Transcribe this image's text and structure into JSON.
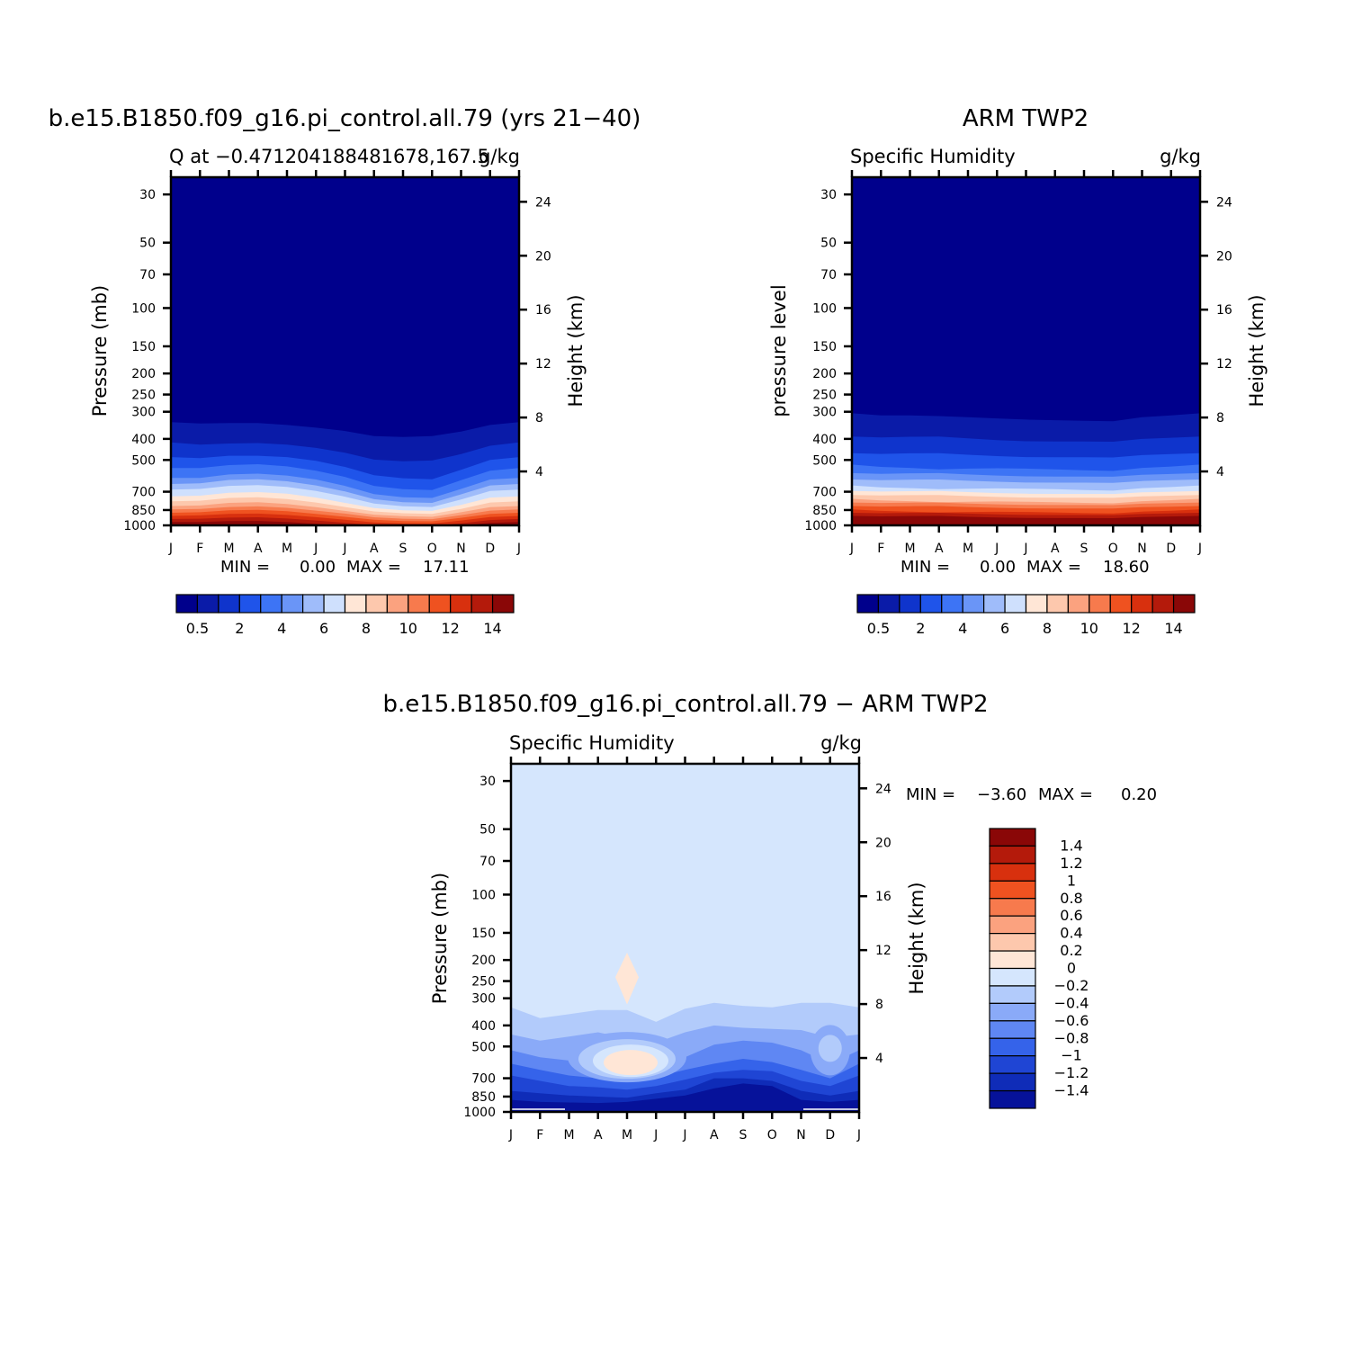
{
  "chart_data": [
    {
      "type": "heatmap",
      "title": "b.e15.B1850.f09_g16.pi_control.all.79 (yrs 21−40)",
      "left_label": "Q at −0.471204188481678,167.5",
      "right_label": "g/kg",
      "ylabel": "Pressure (mb)",
      "ylabel_right": "Height (km)",
      "x_ticks": [
        "J",
        "F",
        "M",
        "A",
        "M",
        "J",
        "J",
        "A",
        "S",
        "O",
        "N",
        "D",
        "J"
      ],
      "y_ticks": [
        30,
        50,
        70,
        100,
        150,
        200,
        250,
        300,
        400,
        500,
        700,
        850,
        1000
      ],
      "y_right_ticks": [
        24,
        20,
        16,
        12,
        8,
        4
      ],
      "ylim": [
        1000,
        25
      ],
      "stats": {
        "min_label": "MIN =",
        "min": "0.00",
        "max_label": "MAX =",
        "max": "17.11"
      },
      "colorbar": {
        "orientation": "horizontal",
        "labels": [
          "0.5",
          "2",
          "4",
          "6",
          "8",
          "10",
          "12",
          "14"
        ]
      },
      "month_profile_q_at_500mb": [
        2.2,
        2.3,
        2.5,
        2.7,
        2.6,
        2.3,
        2.0,
        1.6,
        1.3,
        1.2,
        1.8,
        2.3,
        2.2
      ]
    },
    {
      "type": "heatmap",
      "title": "ARM TWP2",
      "left_label": "Specific Humidity",
      "right_label": "g/kg",
      "ylabel": "pressure level",
      "ylabel_right": "Height (km)",
      "x_ticks": [
        "J",
        "F",
        "M",
        "A",
        "M",
        "J",
        "J",
        "A",
        "S",
        "O",
        "N",
        "D",
        "J"
      ],
      "y_ticks": [
        30,
        50,
        70,
        100,
        150,
        200,
        250,
        300,
        400,
        500,
        700,
        850,
        1000
      ],
      "y_right_ticks": [
        24,
        20,
        16,
        12,
        8,
        4
      ],
      "ylim": [
        1000,
        25
      ],
      "stats": {
        "min_label": "MIN =",
        "min": "0.00",
        "max_label": "MAX =",
        "max": "18.60"
      },
      "colorbar": {
        "orientation": "horizontal",
        "labels": [
          "0.5",
          "2",
          "4",
          "6",
          "8",
          "10",
          "12",
          "14"
        ]
      }
    },
    {
      "type": "heatmap",
      "title": "b.e15.B1850.f09_g16.pi_control.all.79 − ARM TWP2",
      "left_label": "Specific Humidity",
      "right_label": "g/kg",
      "ylabel": "Pressure (mb)",
      "ylabel_right": "Height (km)",
      "x_ticks": [
        "J",
        "F",
        "M",
        "A",
        "M",
        "J",
        "J",
        "A",
        "S",
        "O",
        "N",
        "D",
        "J"
      ],
      "y_ticks": [
        30,
        50,
        70,
        100,
        150,
        200,
        250,
        300,
        400,
        500,
        700,
        850,
        1000
      ],
      "y_right_ticks": [
        24,
        20,
        16,
        12,
        8,
        4
      ],
      "ylim": [
        1000,
        25
      ],
      "stats": {
        "min_label": "MIN =",
        "min": "−3.60",
        "max_label": "MAX =",
        "max": "0.20"
      },
      "colorbar": {
        "orientation": "vertical",
        "labels": [
          "1.4",
          "1.2",
          "1",
          "0.8",
          "0.6",
          "0.4",
          "0.2",
          "0",
          "−0.2",
          "−0.4",
          "−0.6",
          "−0.8",
          "−1",
          "−1.2",
          "−1.4"
        ]
      }
    }
  ],
  "palettes": {
    "absolute": [
      "#00008c",
      "#0a1ba8",
      "#0f34cc",
      "#1f54ea",
      "#3d74f5",
      "#6a95f7",
      "#9fbcfa",
      "#cfe0fd",
      "#ffe6d6",
      "#fdc8ad",
      "#fba27f",
      "#f77a4d",
      "#ef5220",
      "#d8300e",
      "#b41a0b",
      "#8a0707"
    ],
    "difference": [
      "#8a0707",
      "#b41a0b",
      "#d8300e",
      "#ef5220",
      "#f77a4d",
      "#fba27f",
      "#fdc8ad",
      "#ffe6d6",
      "#d5e6fd",
      "#b2cbfb",
      "#8aaaf8",
      "#5f87f3",
      "#3563ea",
      "#1f45d4",
      "#0f2cb8",
      "#06129a"
    ]
  }
}
